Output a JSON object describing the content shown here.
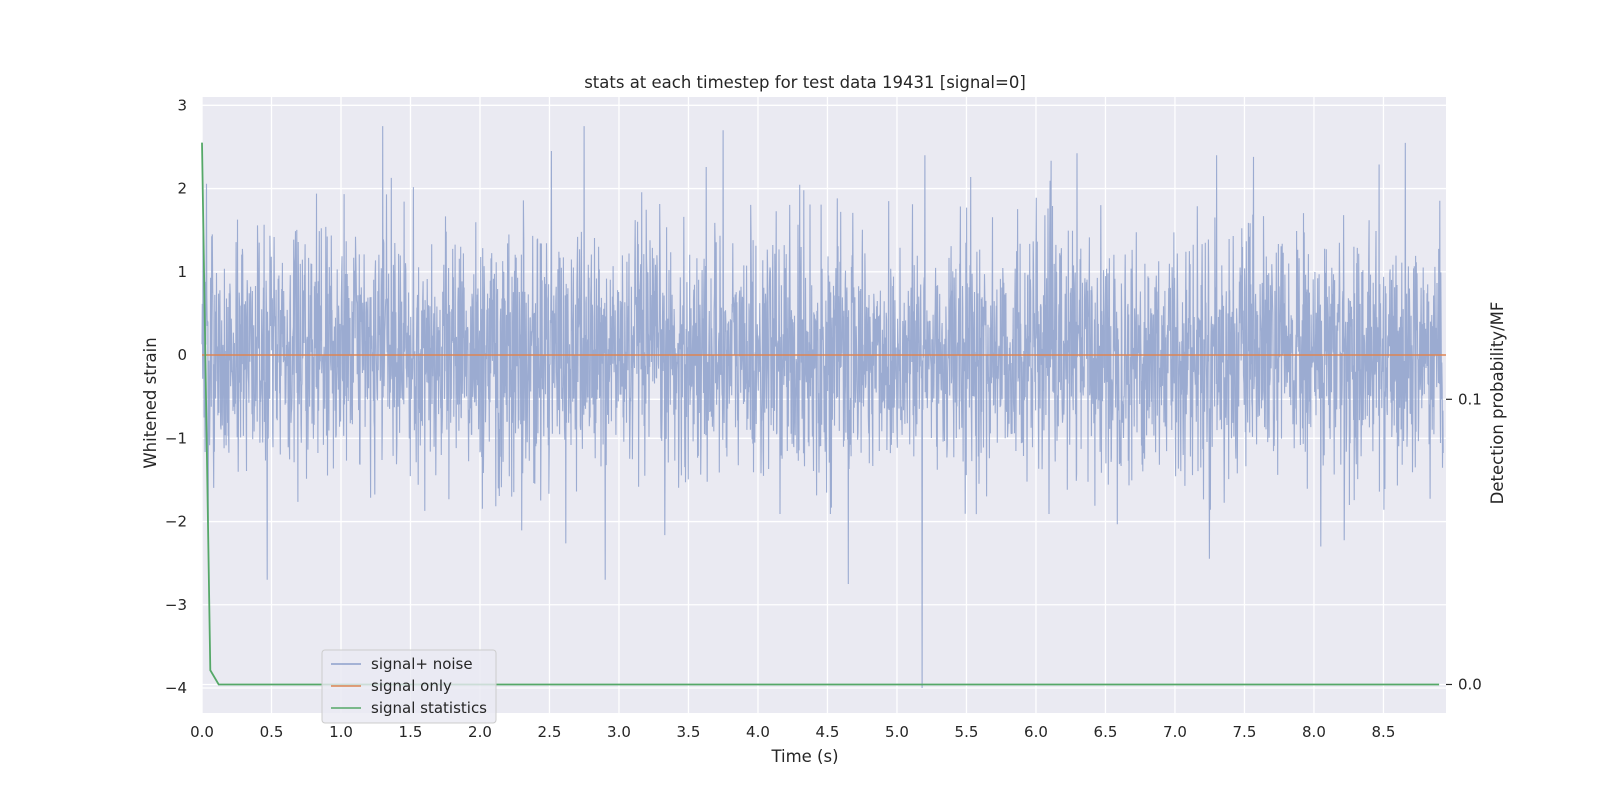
{
  "chart_data": {
    "type": "line",
    "title": "stats at each timestep for test data 19431 [signal=0]",
    "xlabel": "Time (s)",
    "ylabel": "Whitened strain",
    "ylabel_right": "Detection probability/MF",
    "xlim": [
      0.0,
      8.95
    ],
    "ylim": [
      -4.3,
      3.1
    ],
    "ylim_right": [
      -0.01,
      0.206
    ],
    "x_ticks": [
      "0.0",
      "0.5",
      "1.0",
      "1.5",
      "2.0",
      "2.5",
      "3.0",
      "3.5",
      "4.0",
      "4.5",
      "5.0",
      "5.5",
      "6.0",
      "6.5",
      "7.0",
      "7.5",
      "8.0",
      "8.5"
    ],
    "x_tick_values": [
      0.0,
      0.5,
      1.0,
      1.5,
      2.0,
      2.5,
      3.0,
      3.5,
      4.0,
      4.5,
      5.0,
      5.5,
      6.0,
      6.5,
      7.0,
      7.5,
      8.0,
      8.5
    ],
    "y_ticks": [
      "3",
      "2",
      "1",
      "0",
      "−1",
      "−2",
      "−3",
      "−4"
    ],
    "y_tick_values": [
      3,
      2,
      1,
      0,
      -1,
      -2,
      -3,
      -4
    ],
    "y_right_ticks": [
      "0.1",
      "0.0"
    ],
    "y_right_tick_values": [
      0.1,
      0.0
    ],
    "grid": true,
    "legend_position": "lower-left",
    "series": [
      {
        "name": "signal+ noise",
        "color": "#8da0cb",
        "axis": "left",
        "sample_rate_hz": 2048,
        "approx_amplitude_range": [
          -4.0,
          2.75
        ],
        "notable_points": [
          {
            "x": 0.47,
            "y": -2.7
          },
          {
            "x": 1.3,
            "y": 2.75
          },
          {
            "x": 2.75,
            "y": 2.75
          },
          {
            "x": 2.9,
            "y": -2.7
          },
          {
            "x": 3.75,
            "y": 2.7
          },
          {
            "x": 4.65,
            "y": -2.75
          },
          {
            "x": 5.18,
            "y": -4.0
          },
          {
            "x": 5.2,
            "y": 2.4
          },
          {
            "x": 7.3,
            "y": 2.4
          },
          {
            "x": 8.05,
            "y": -2.3
          }
        ]
      },
      {
        "name": "signal only",
        "color": "#dd8452",
        "axis": "left",
        "x": [
          0.0,
          8.95
        ],
        "y": [
          0.0,
          0.0
        ]
      },
      {
        "name": "signal statistics",
        "color": "#55a868",
        "axis": "right",
        "x": [
          0.0,
          0.06,
          0.12,
          8.9
        ],
        "y": [
          0.19,
          0.005,
          0.0,
          0.0
        ]
      }
    ]
  }
}
